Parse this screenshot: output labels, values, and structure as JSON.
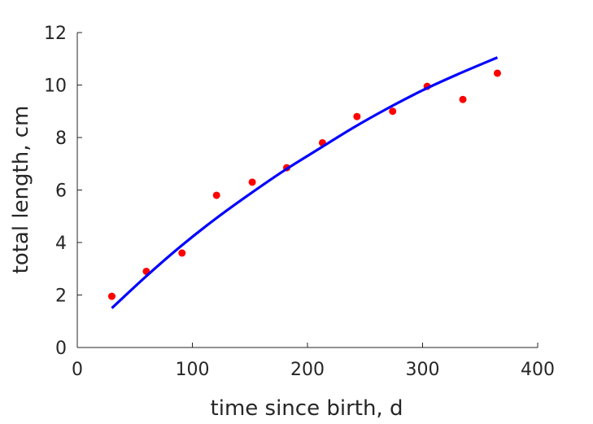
{
  "chart_data": {
    "type": "scatter",
    "title": "",
    "xlabel": "time since birth, d",
    "ylabel": "total length, cm",
    "xlim": [
      0,
      400
    ],
    "ylim": [
      0,
      12
    ],
    "xticks": [
      0,
      100,
      200,
      300,
      400
    ],
    "yticks": [
      0,
      2,
      4,
      6,
      8,
      10,
      12
    ],
    "grid": false,
    "box": "left-bottom",
    "series": [
      {
        "kind": "points",
        "color": "#ff0000",
        "x": [
          30,
          60,
          91,
          121,
          152,
          182,
          213,
          243,
          274,
          304,
          335,
          365
        ],
        "y": [
          1.95,
          2.9,
          3.6,
          5.8,
          6.3,
          6.85,
          7.8,
          8.8,
          9.0,
          9.95,
          9.45,
          10.45
        ]
      },
      {
        "kind": "line",
        "color": "#0000ff",
        "x": [
          30,
          60,
          90,
          120,
          150,
          180,
          210,
          240,
          270,
          300,
          330,
          365
        ],
        "y": [
          1.5,
          2.72,
          3.86,
          4.9,
          5.85,
          6.75,
          7.57,
          8.38,
          9.12,
          9.8,
          10.4,
          11.05
        ]
      }
    ]
  }
}
